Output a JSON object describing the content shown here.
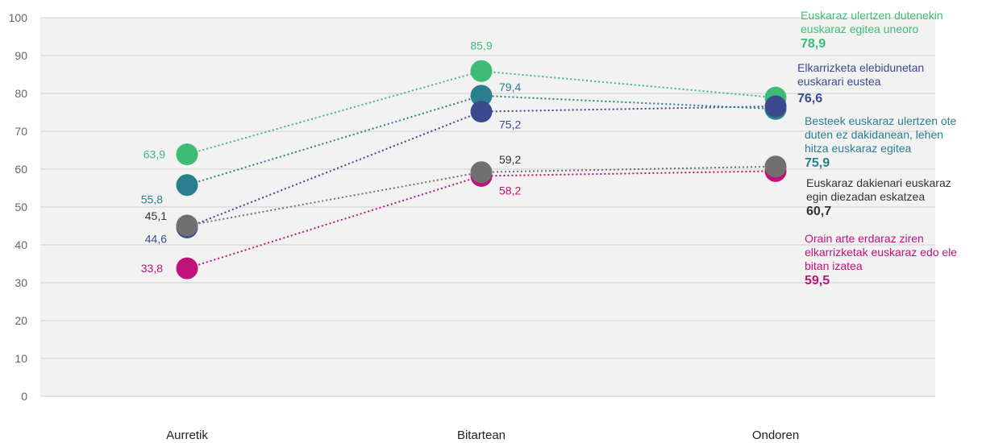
{
  "chart_data": {
    "type": "line",
    "categories": [
      "Aurretik",
      "Bitartean",
      "Ondoren"
    ],
    "ylim": [
      0,
      100
    ],
    "yticks": [
      0,
      10,
      20,
      30,
      40,
      50,
      60,
      70,
      80,
      90,
      100
    ],
    "grid": true,
    "legend_position": "right",
    "series": [
      {
        "key": "green",
        "name": "Euskaraz ulertzen dutenekin euskaraz egitea uneoro",
        "color": "#3dbb77",
        "values": [
          63.9,
          85.9,
          78.9
        ],
        "labels": [
          "63,9",
          "85,9",
          "78,9"
        ]
      },
      {
        "key": "navy",
        "name": "Elkarrizketa elebidunetan euskarari eustea",
        "color": "#3b4a8f",
        "values": [
          44.6,
          75.2,
          76.6
        ],
        "labels": [
          "44,6",
          "75,2",
          "76,6"
        ]
      },
      {
        "key": "teal",
        "name": "Besteek euskaraz ulertzen ote duten ez dakidanean, lehen hitza euskaraz egitea",
        "color": "#2a7f8f",
        "values": [
          55.8,
          79.4,
          75.9
        ],
        "labels": [
          "55,8",
          "79,4",
          "75,9"
        ]
      },
      {
        "key": "gray",
        "name": "Euskaraz dakienari euskaraz egin diezadan eskatzea",
        "color": "#707070",
        "values": [
          45.1,
          59.2,
          60.7
        ],
        "labels": [
          "45,1",
          "59,2",
          "60,7"
        ]
      },
      {
        "key": "magenta",
        "name": "Orain arte erdaraz ziren elkarrizketak euskaraz edo ele bitan izatea",
        "color": "#c0127a",
        "values": [
          33.8,
          58.2,
          59.5
        ],
        "labels": [
          "33,8",
          "58,2",
          "59,5"
        ]
      }
    ]
  }
}
